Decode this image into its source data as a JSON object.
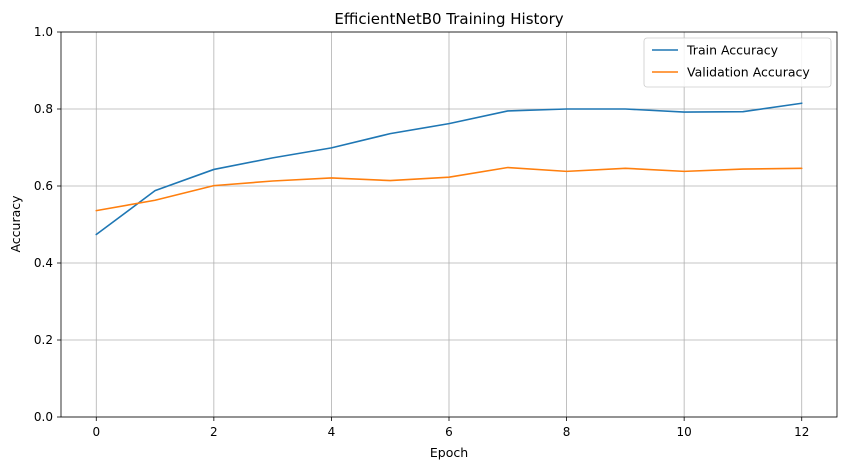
{
  "chart_data": {
    "type": "line",
    "title": "EfficientNetB0 Training History",
    "xlabel": "Epoch",
    "ylabel": "Accuracy",
    "x": [
      0,
      1,
      2,
      3,
      4,
      5,
      6,
      7,
      8,
      9,
      10,
      11,
      12
    ],
    "xlim": [
      -0.6,
      12.6
    ],
    "ylim": [
      0.0,
      1.0
    ],
    "xticks": [
      0,
      2,
      4,
      6,
      8,
      10,
      12
    ],
    "yticks": [
      0.0,
      0.2,
      0.4,
      0.6,
      0.8,
      1.0
    ],
    "xtick_labels": [
      "0",
      "2",
      "4",
      "6",
      "8",
      "10",
      "12"
    ],
    "ytick_labels": [
      "0.0",
      "0.2",
      "0.4",
      "0.6",
      "0.8",
      "1.0"
    ],
    "grid": true,
    "legend_position": "upper right",
    "series": [
      {
        "name": "Train Accuracy",
        "color": "#1f77b4",
        "values": [
          0.474,
          0.588,
          0.643,
          0.673,
          0.699,
          0.736,
          0.762,
          0.795,
          0.8,
          0.8,
          0.792,
          0.793,
          0.815
        ]
      },
      {
        "name": "Validation Accuracy",
        "color": "#ff7f0e",
        "values": [
          0.536,
          0.563,
          0.601,
          0.613,
          0.621,
          0.614,
          0.623,
          0.648,
          0.638,
          0.646,
          0.638,
          0.644,
          0.646
        ]
      }
    ]
  }
}
